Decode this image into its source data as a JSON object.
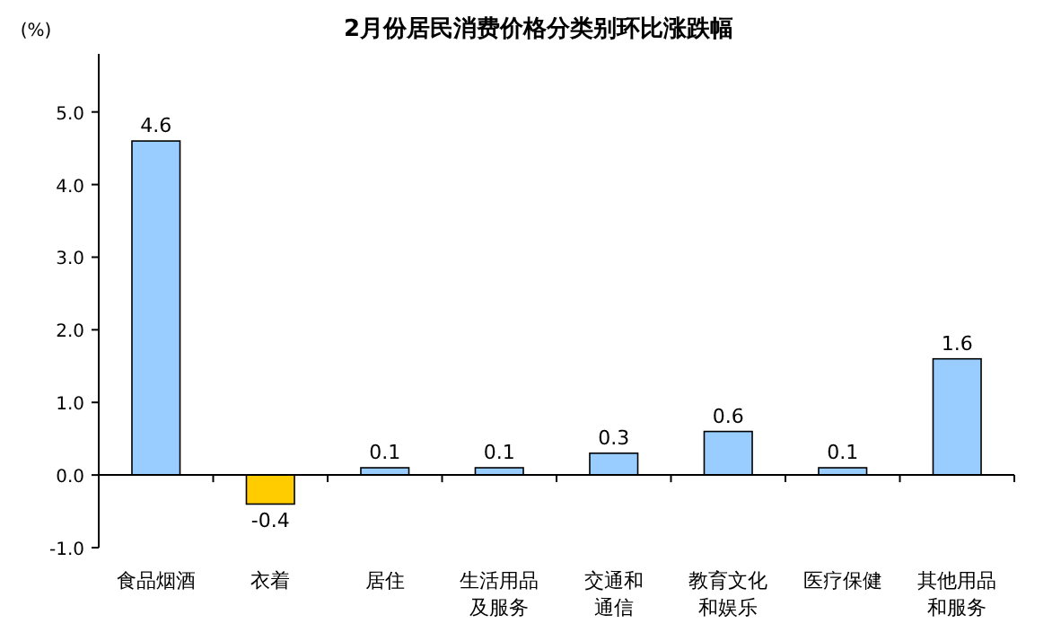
{
  "chart_data": {
    "type": "bar",
    "title": "2月份居民消费价格分类别环比涨跌幅",
    "ylabel": "(%)",
    "categories": [
      "食品烟酒",
      "衣着",
      "居住",
      "生活用品及服务",
      "交通和通信",
      "教育文化和娱乐",
      "医疗保健",
      "其他用品和服务"
    ],
    "values": [
      4.6,
      -0.4,
      0.1,
      0.1,
      0.3,
      0.6,
      0.1,
      1.6
    ],
    "colors": [
      "#99ccff",
      "#ffcc00",
      "#99ccff",
      "#99ccff",
      "#99ccff",
      "#99ccff",
      "#99ccff",
      "#99ccff"
    ],
    "ylim": [
      -1,
      5.8
    ],
    "yticks": [
      {
        "value": -1,
        "label": "-1.0"
      },
      {
        "value": 0,
        "label": "0.0"
      },
      {
        "value": 1,
        "label": "1.0"
      },
      {
        "value": 2,
        "label": "2.0"
      },
      {
        "value": 3,
        "label": "3.0"
      },
      {
        "value": 4,
        "label": "4.0"
      },
      {
        "value": 5,
        "label": "5.0"
      }
    ],
    "data_labels": true
  }
}
